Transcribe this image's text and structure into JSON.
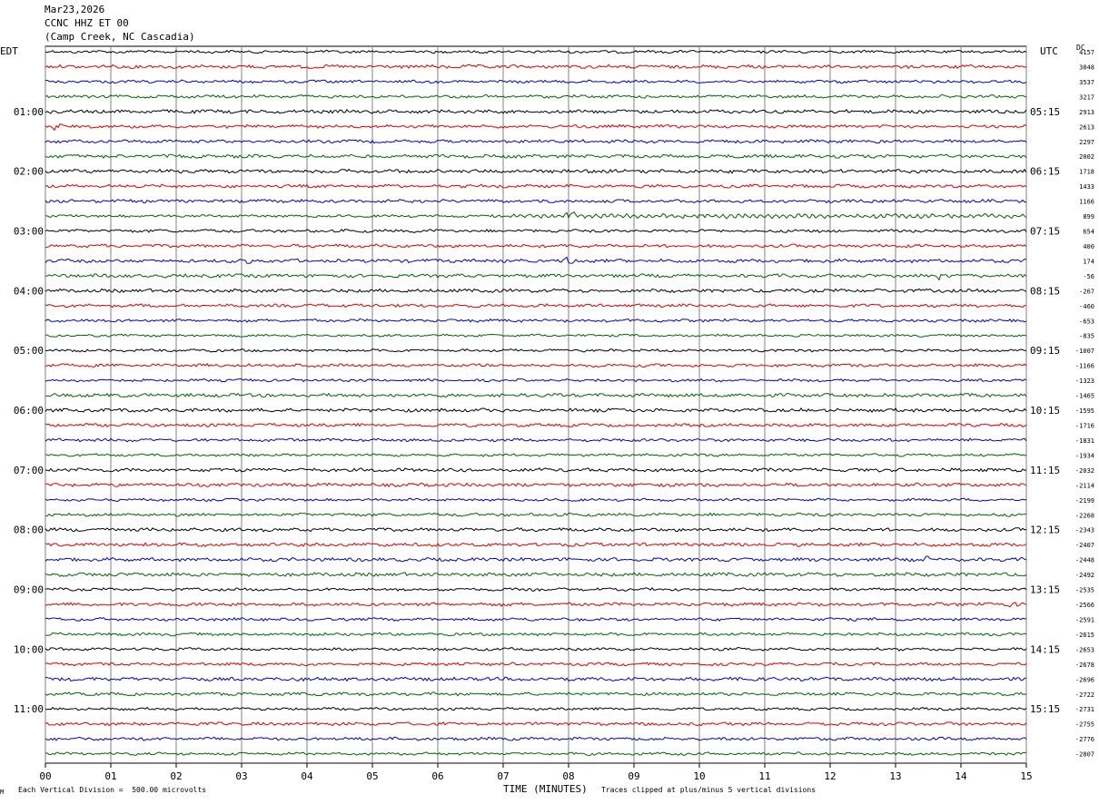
{
  "header": {
    "date": "Mar23,2026",
    "station": "CCNC HHZ ET 00",
    "location": "(Camp Creek, NC Cascadia)"
  },
  "left_timezone": "EDT",
  "right_timezone": "UTC",
  "dc_label": "DC",
  "footer": {
    "scale_note": "Each Vertical Division =  500.00 microvolts",
    "clip_note": "Traces clipped at plus/minus 5 vertical divisions",
    "corner_mark": "M"
  },
  "colors": {
    "trace_cycle": [
      "#000000",
      "#e00000",
      "#0000cc",
      "#006400"
    ],
    "grid": "#808080"
  },
  "chart_data": {
    "type": "line",
    "subtype": "helicorder",
    "xlabel": "TIME (MINUTES)",
    "xlim": [
      0,
      15
    ],
    "x_ticks": [
      "00",
      "01",
      "02",
      "03",
      "04",
      "05",
      "06",
      "07",
      "08",
      "09",
      "10",
      "11",
      "12",
      "13",
      "14",
      "15"
    ],
    "rows_per_hour": 4,
    "minutes_per_row": 15,
    "left_hour_labels": [
      "01:00",
      "02:00",
      "03:00",
      "04:00",
      "05:00",
      "06:00",
      "07:00",
      "08:00",
      "09:00",
      "10:00",
      "11:00"
    ],
    "right_hour_labels": [
      "05:15",
      "06:15",
      "07:15",
      "08:15",
      "09:15",
      "10:15",
      "11:15",
      "12:15",
      "13:15",
      "14:15",
      "15:15"
    ],
    "dc_offsets": [
      "4157",
      "3848",
      "3537",
      "3217",
      "2913",
      "2613",
      "2297",
      "2002",
      "1718",
      "1433",
      "1166",
      "899",
      "654",
      "400",
      "174",
      "-56",
      "-267",
      "-460",
      "-653",
      "-835",
      "-1007",
      "-1166",
      "-1323",
      "-1465",
      "-1595",
      "-1716",
      "-1831",
      "-1934",
      "-2032",
      "-2114",
      "-2199",
      "-2268",
      "-2343",
      "-2407",
      "-2448",
      "-2492",
      "-2535",
      "-2566",
      "-2591",
      "-2615",
      "-2653",
      "-2678",
      "-2696",
      "-2722",
      "-2731",
      "-2755",
      "-2776",
      "-2807"
    ],
    "notable_events": [
      {
        "row": 5,
        "minute": 0.2
      },
      {
        "row": 11,
        "minute": 8.0
      },
      {
        "row": 14,
        "minute": 3.1
      },
      {
        "row": 14,
        "minute": 8.0
      },
      {
        "row": 15,
        "minute": 13.7
      },
      {
        "row": 34,
        "minute": 13.5
      },
      {
        "row": 37,
        "minute": 14.8
      }
    ]
  }
}
